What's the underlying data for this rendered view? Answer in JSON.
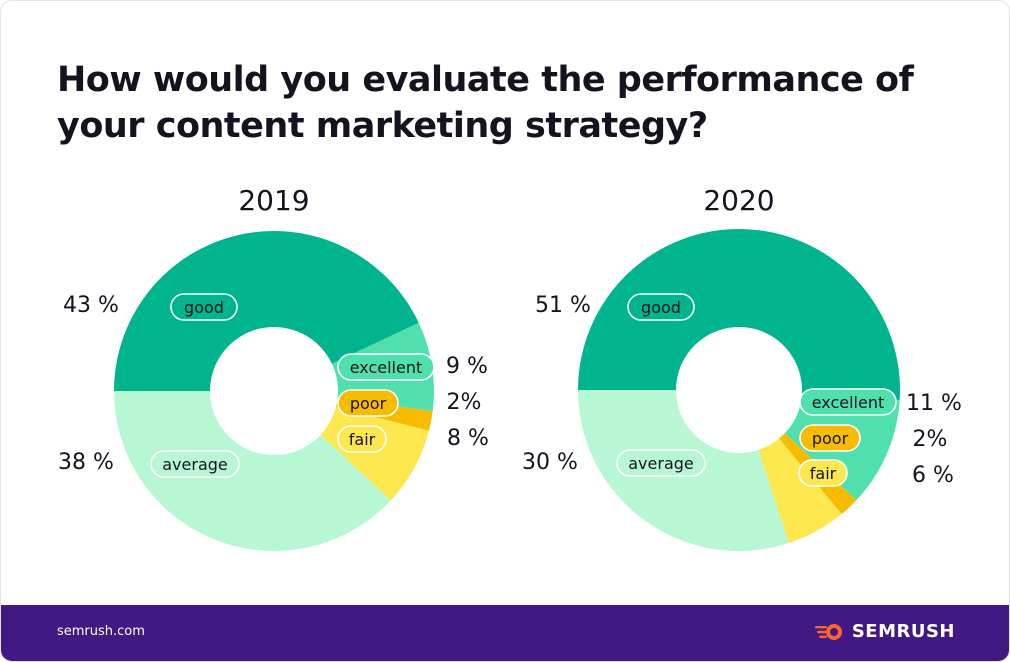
{
  "title": "How would you evaluate the performance of your content marketing strategy?",
  "colors": {
    "good": "#00b48e",
    "excellent": "#4fe0ad",
    "poor": "#f7bb00",
    "fair": "#fde74f",
    "average": "#b8f7d4",
    "footer": "#421983",
    "brand": "#ff642d"
  },
  "chart_data": [
    {
      "type": "pie",
      "title": "2019",
      "slices": [
        {
          "label": "good",
          "value": 43,
          "value_label": "43 %"
        },
        {
          "label": "excellent",
          "value": 9,
          "value_label": "9 %"
        },
        {
          "label": "poor",
          "value": 2,
          "value_label": "2%"
        },
        {
          "label": "fair",
          "value": 8,
          "value_label": "8 %"
        },
        {
          "label": "average",
          "value": 38,
          "value_label": "38 %"
        }
      ]
    },
    {
      "type": "pie",
      "title": "2020",
      "slices": [
        {
          "label": "good",
          "value": 51,
          "value_label": "51 %"
        },
        {
          "label": "excellent",
          "value": 11,
          "value_label": "11 %"
        },
        {
          "label": "poor",
          "value": 2,
          "value_label": "2%"
        },
        {
          "label": "fair",
          "value": 6,
          "value_label": "6 %"
        },
        {
          "label": "average",
          "value": 30,
          "value_label": "30 %"
        }
      ]
    }
  ],
  "footer": {
    "url": "semrush.com",
    "logo_text": "SEMRUSH",
    "logo_icon": "semrush-fireball-icon"
  }
}
